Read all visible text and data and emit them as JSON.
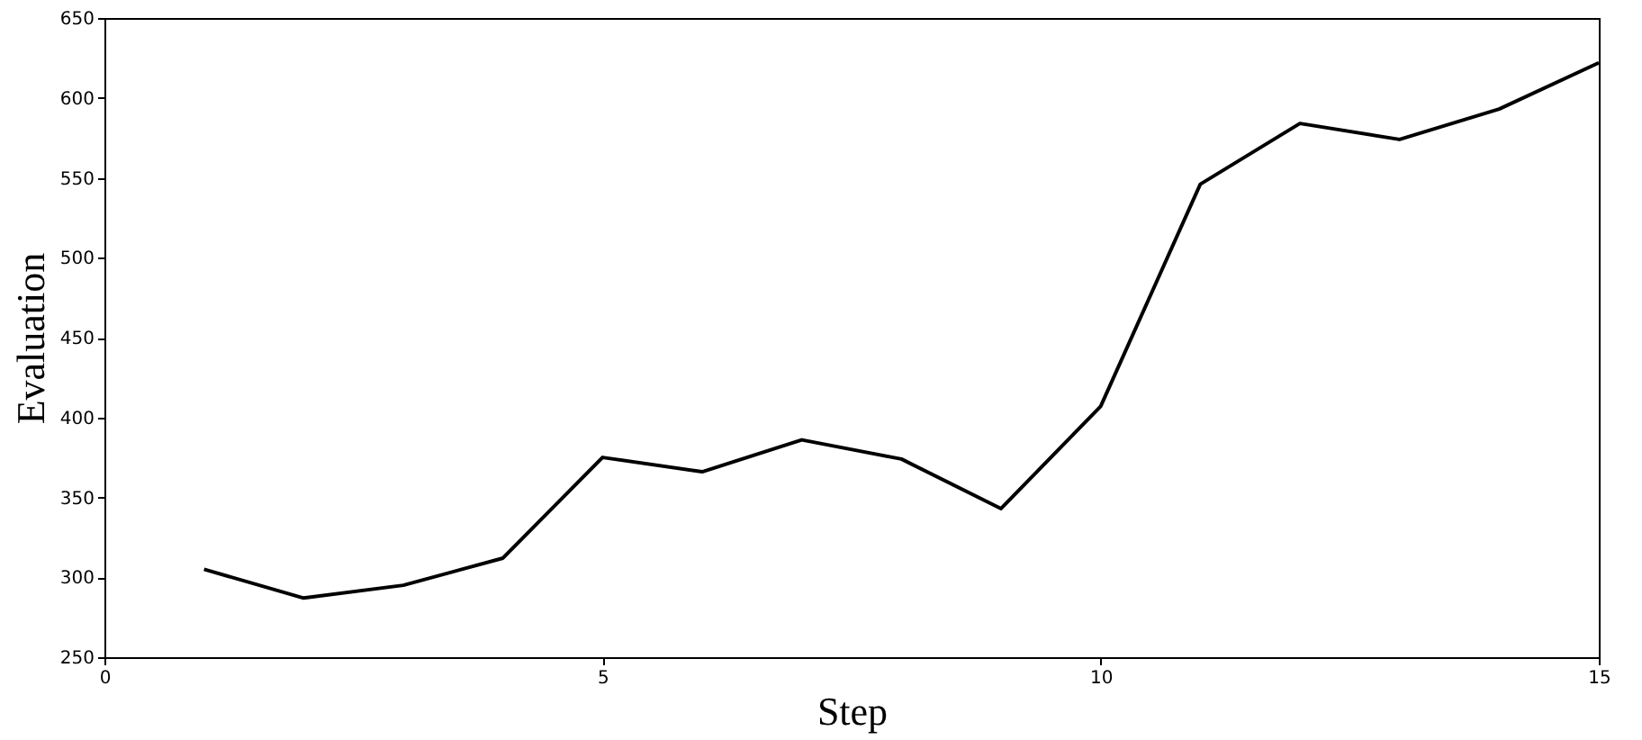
{
  "chart_data": {
    "type": "line",
    "xlabel": "Step",
    "ylabel": "Evaluation",
    "x": [
      1,
      2,
      3,
      4,
      5,
      6,
      7,
      8,
      9,
      10,
      11,
      12,
      13,
      14,
      15
    ],
    "series": [
      {
        "color": "#000000",
        "values": [
          305,
          287,
          295,
          312,
          375,
          366,
          386,
          374,
          343,
          407,
          546,
          584,
          574,
          593,
          622
        ]
      }
    ],
    "xlim": [
      0,
      15
    ],
    "ylim": [
      250,
      650
    ],
    "xticks": [
      0,
      5,
      10,
      15
    ],
    "yticks": [
      250,
      300,
      350,
      400,
      450,
      500,
      550,
      600,
      650
    ],
    "grid": false,
    "marker": "none",
    "line_style": "solid"
  }
}
